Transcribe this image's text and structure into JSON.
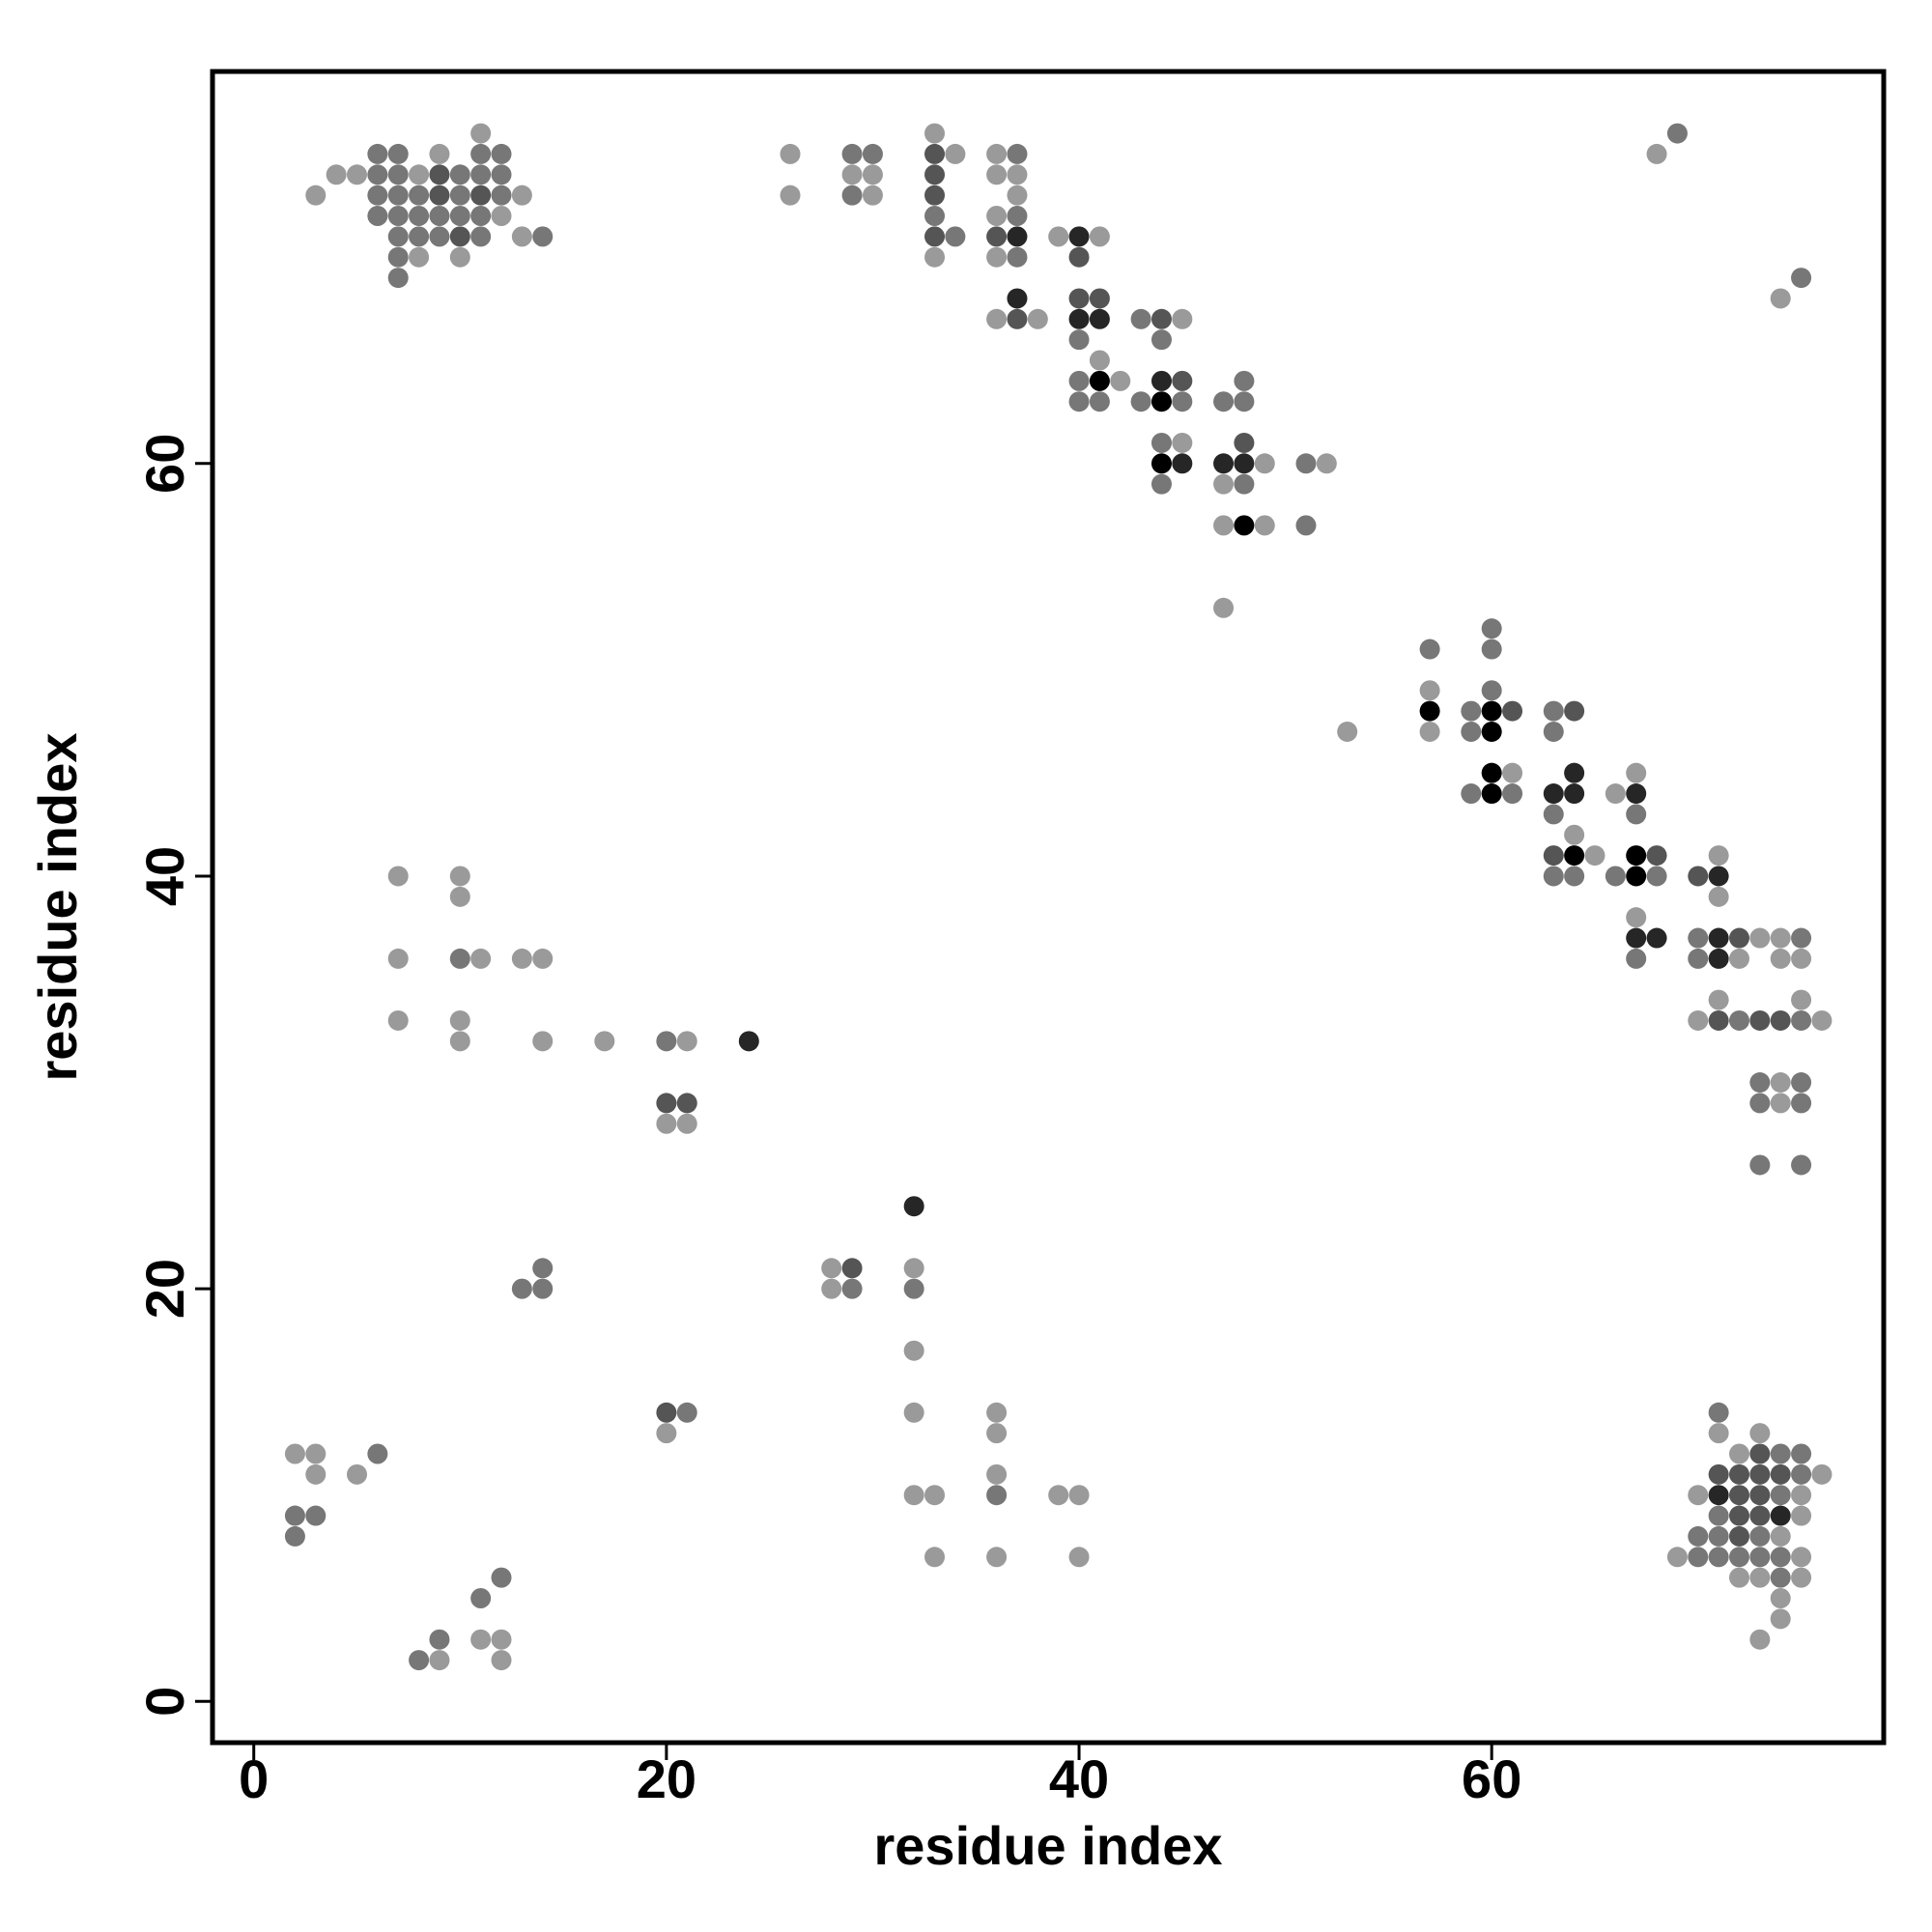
{
  "chart_data": {
    "type": "scatter",
    "x_label": "residue index",
    "y_label": "residue index",
    "xlim": [
      -2,
      79
    ],
    "ylim": [
      -2,
      79
    ],
    "xticks": [
      0,
      20,
      40,
      60
    ],
    "yticks": [
      0,
      20,
      40,
      60
    ],
    "points": [
      [
        11,
        76,
        "#9a9a9a"
      ],
      [
        6,
        75,
        "#777777"
      ],
      [
        7,
        75,
        "#777777"
      ],
      [
        9,
        75,
        "#9a9a9a"
      ],
      [
        11,
        75,
        "#777777"
      ],
      [
        12,
        75,
        "#777777"
      ],
      [
        4,
        74,
        "#9a9a9a"
      ],
      [
        5,
        74,
        "#9a9a9a"
      ],
      [
        6,
        74,
        "#777777"
      ],
      [
        7,
        74,
        "#777777"
      ],
      [
        8,
        74,
        "#9a9a9a"
      ],
      [
        9,
        74,
        "#555555"
      ],
      [
        10,
        74,
        "#777777"
      ],
      [
        11,
        74,
        "#777777"
      ],
      [
        12,
        74,
        "#777777"
      ],
      [
        3,
        73,
        "#9a9a9a"
      ],
      [
        6,
        73,
        "#777777"
      ],
      [
        7,
        73,
        "#777777"
      ],
      [
        8,
        73,
        "#777777"
      ],
      [
        9,
        73,
        "#555555"
      ],
      [
        10,
        73,
        "#777777"
      ],
      [
        11,
        73,
        "#555555"
      ],
      [
        12,
        73,
        "#777777"
      ],
      [
        13,
        73,
        "#9a9a9a"
      ],
      [
        6,
        72,
        "#777777"
      ],
      [
        7,
        72,
        "#777777"
      ],
      [
        8,
        72,
        "#777777"
      ],
      [
        9,
        72,
        "#777777"
      ],
      [
        10,
        72,
        "#777777"
      ],
      [
        11,
        72,
        "#777777"
      ],
      [
        12,
        72,
        "#9a9a9a"
      ],
      [
        7,
        71,
        "#777777"
      ],
      [
        8,
        71,
        "#777777"
      ],
      [
        9,
        71,
        "#777777"
      ],
      [
        10,
        71,
        "#555555"
      ],
      [
        11,
        71,
        "#777777"
      ],
      [
        13,
        71,
        "#9a9a9a"
      ],
      [
        14,
        71,
        "#777777"
      ],
      [
        7,
        70,
        "#777777"
      ],
      [
        8,
        70,
        "#9a9a9a"
      ],
      [
        10,
        70,
        "#9a9a9a"
      ],
      [
        7,
        69,
        "#777777"
      ],
      [
        26,
        75,
        "#9a9a9a"
      ],
      [
        26,
        73,
        "#9a9a9a"
      ],
      [
        29,
        75,
        "#777777"
      ],
      [
        29,
        74,
        "#9a9a9a"
      ],
      [
        29,
        73,
        "#777777"
      ],
      [
        30,
        75,
        "#777777"
      ],
      [
        30,
        74,
        "#9a9a9a"
      ],
      [
        30,
        73,
        "#9a9a9a"
      ],
      [
        33,
        76,
        "#9a9a9a"
      ],
      [
        33,
        75,
        "#555555"
      ],
      [
        33,
        74,
        "#555555"
      ],
      [
        33,
        73,
        "#555555"
      ],
      [
        33,
        72,
        "#777777"
      ],
      [
        33,
        71,
        "#555555"
      ],
      [
        33,
        70,
        "#9a9a9a"
      ],
      [
        34,
        75,
        "#9a9a9a"
      ],
      [
        34,
        71,
        "#777777"
      ],
      [
        36,
        75,
        "#9a9a9a"
      ],
      [
        36,
        74,
        "#9a9a9a"
      ],
      [
        36,
        72,
        "#9a9a9a"
      ],
      [
        36,
        71,
        "#555555"
      ],
      [
        36,
        70,
        "#9a9a9a"
      ],
      [
        36,
        67,
        "#9a9a9a"
      ],
      [
        37,
        75,
        "#777777"
      ],
      [
        37,
        74,
        "#9a9a9a"
      ],
      [
        37,
        73,
        "#9a9a9a"
      ],
      [
        37,
        72,
        "#777777"
      ],
      [
        37,
        71,
        "#262626"
      ],
      [
        37,
        70,
        "#777777"
      ],
      [
        37,
        68,
        "#262626"
      ],
      [
        37,
        67,
        "#555555"
      ],
      [
        38,
        67,
        "#9a9a9a"
      ],
      [
        39,
        71,
        "#9a9a9a"
      ],
      [
        40,
        71,
        "#262626"
      ],
      [
        40,
        70,
        "#555555"
      ],
      [
        40,
        68,
        "#555555"
      ],
      [
        40,
        67,
        "#262626"
      ],
      [
        40,
        66,
        "#777777"
      ],
      [
        40,
        64,
        "#777777"
      ],
      [
        40,
        63,
        "#777777"
      ],
      [
        41,
        71,
        "#9a9a9a"
      ],
      [
        41,
        68,
        "#555555"
      ],
      [
        41,
        67,
        "#262626"
      ],
      [
        41,
        65,
        "#9a9a9a"
      ],
      [
        41,
        64,
        "#000000"
      ],
      [
        41,
        63,
        "#777777"
      ],
      [
        42,
        64,
        "#9a9a9a"
      ],
      [
        43,
        67,
        "#777777"
      ],
      [
        43,
        63,
        "#777777"
      ],
      [
        44,
        67,
        "#555555"
      ],
      [
        44,
        66,
        "#777777"
      ],
      [
        44,
        64,
        "#262626"
      ],
      [
        44,
        63,
        "#000000"
      ],
      [
        44,
        61,
        "#777777"
      ],
      [
        44,
        60,
        "#000000"
      ],
      [
        44,
        59,
        "#777777"
      ],
      [
        45,
        67,
        "#9a9a9a"
      ],
      [
        45,
        64,
        "#555555"
      ],
      [
        45,
        63,
        "#777777"
      ],
      [
        45,
        61,
        "#9a9a9a"
      ],
      [
        45,
        60,
        "#262626"
      ],
      [
        47,
        63,
        "#777777"
      ],
      [
        47,
        60,
        "#262626"
      ],
      [
        47,
        59,
        "#9a9a9a"
      ],
      [
        47,
        57,
        "#9a9a9a"
      ],
      [
        47,
        53,
        "#9a9a9a"
      ],
      [
        48,
        64,
        "#777777"
      ],
      [
        48,
        63,
        "#777777"
      ],
      [
        48,
        61,
        "#555555"
      ],
      [
        48,
        60,
        "#262626"
      ],
      [
        48,
        59,
        "#777777"
      ],
      [
        48,
        57,
        "#000000"
      ],
      [
        49,
        60,
        "#9a9a9a"
      ],
      [
        49,
        57,
        "#9a9a9a"
      ],
      [
        51,
        60,
        "#777777"
      ],
      [
        51,
        57,
        "#777777"
      ],
      [
        52,
        60,
        "#9a9a9a"
      ],
      [
        53,
        47,
        "#9a9a9a"
      ],
      [
        57,
        51,
        "#777777"
      ],
      [
        57,
        49,
        "#9a9a9a"
      ],
      [
        57,
        48,
        "#000000"
      ],
      [
        57,
        47,
        "#9a9a9a"
      ],
      [
        59,
        48,
        "#777777"
      ],
      [
        59,
        47,
        "#777777"
      ],
      [
        59,
        44,
        "#777777"
      ],
      [
        60,
        52,
        "#777777"
      ],
      [
        60,
        51,
        "#777777"
      ],
      [
        60,
        49,
        "#777777"
      ],
      [
        60,
        48,
        "#000000"
      ],
      [
        60,
        47,
        "#000000"
      ],
      [
        60,
        45,
        "#000000"
      ],
      [
        60,
        44,
        "#000000"
      ],
      [
        61,
        48,
        "#555555"
      ],
      [
        61,
        45,
        "#9a9a9a"
      ],
      [
        61,
        44,
        "#777777"
      ],
      [
        63,
        48,
        "#777777"
      ],
      [
        63,
        47,
        "#777777"
      ],
      [
        63,
        44,
        "#262626"
      ],
      [
        63,
        43,
        "#777777"
      ],
      [
        63,
        41,
        "#555555"
      ],
      [
        63,
        40,
        "#777777"
      ],
      [
        64,
        48,
        "#555555"
      ],
      [
        64,
        45,
        "#262626"
      ],
      [
        64,
        44,
        "#262626"
      ],
      [
        64,
        42,
        "#9a9a9a"
      ],
      [
        64,
        41,
        "#000000"
      ],
      [
        64,
        40,
        "#777777"
      ],
      [
        65,
        41,
        "#9a9a9a"
      ],
      [
        66,
        44,
        "#9a9a9a"
      ],
      [
        66,
        40,
        "#777777"
      ],
      [
        67,
        45,
        "#9a9a9a"
      ],
      [
        67,
        44,
        "#262626"
      ],
      [
        67,
        43,
        "#777777"
      ],
      [
        67,
        41,
        "#000000"
      ],
      [
        67,
        40,
        "#000000"
      ],
      [
        67,
        38,
        "#9a9a9a"
      ],
      [
        67,
        37,
        "#262626"
      ],
      [
        67,
        36,
        "#777777"
      ],
      [
        68,
        41,
        "#555555"
      ],
      [
        68,
        40,
        "#777777"
      ],
      [
        68,
        37,
        "#262626"
      ],
      [
        70,
        40,
        "#555555"
      ],
      [
        70,
        37,
        "#777777"
      ],
      [
        70,
        36,
        "#777777"
      ],
      [
        70,
        33,
        "#9a9a9a"
      ],
      [
        71,
        41,
        "#9a9a9a"
      ],
      [
        71,
        40,
        "#262626"
      ],
      [
        71,
        39,
        "#9a9a9a"
      ],
      [
        71,
        37,
        "#262626"
      ],
      [
        71,
        36,
        "#262626"
      ],
      [
        71,
        34,
        "#9a9a9a"
      ],
      [
        71,
        33,
        "#555555"
      ],
      [
        72,
        37,
        "#555555"
      ],
      [
        72,
        36,
        "#9a9a9a"
      ],
      [
        72,
        33,
        "#777777"
      ],
      [
        73,
        37,
        "#9a9a9a"
      ],
      [
        73,
        33,
        "#555555"
      ],
      [
        73,
        30,
        "#777777"
      ],
      [
        73,
        29,
        "#777777"
      ],
      [
        73,
        26,
        "#777777"
      ],
      [
        74,
        37,
        "#9a9a9a"
      ],
      [
        74,
        36,
        "#9a9a9a"
      ],
      [
        74,
        33,
        "#555555"
      ],
      [
        74,
        30,
        "#9a9a9a"
      ],
      [
        74,
        29,
        "#9a9a9a"
      ],
      [
        75,
        37,
        "#777777"
      ],
      [
        75,
        36,
        "#9a9a9a"
      ],
      [
        75,
        34,
        "#9a9a9a"
      ],
      [
        75,
        33,
        "#777777"
      ],
      [
        75,
        30,
        "#777777"
      ],
      [
        75,
        29,
        "#777777"
      ],
      [
        75,
        26,
        "#777777"
      ],
      [
        76,
        33,
        "#9a9a9a"
      ],
      [
        68,
        75,
        "#9a9a9a"
      ],
      [
        69,
        76,
        "#777777"
      ],
      [
        74,
        68,
        "#9a9a9a"
      ],
      [
        75,
        69,
        "#777777"
      ],
      [
        7,
        40,
        "#9a9a9a"
      ],
      [
        7,
        36,
        "#9a9a9a"
      ],
      [
        7,
        33,
        "#9a9a9a"
      ],
      [
        10,
        40,
        "#9a9a9a"
      ],
      [
        10,
        39,
        "#9a9a9a"
      ],
      [
        10,
        36,
        "#777777"
      ],
      [
        10,
        33,
        "#9a9a9a"
      ],
      [
        10,
        32,
        "#9a9a9a"
      ],
      [
        11,
        36,
        "#9a9a9a"
      ],
      [
        13,
        36,
        "#9a9a9a"
      ],
      [
        13,
        20,
        "#777777"
      ],
      [
        14,
        36,
        "#9a9a9a"
      ],
      [
        14,
        32,
        "#9a9a9a"
      ],
      [
        14,
        21,
        "#777777"
      ],
      [
        14,
        20,
        "#777777"
      ],
      [
        17,
        32,
        "#9a9a9a"
      ],
      [
        20,
        32,
        "#777777"
      ],
      [
        20,
        29,
        "#555555"
      ],
      [
        20,
        28,
        "#9a9a9a"
      ],
      [
        20,
        14,
        "#555555"
      ],
      [
        20,
        13,
        "#9a9a9a"
      ],
      [
        21,
        32,
        "#9a9a9a"
      ],
      [
        21,
        29,
        "#555555"
      ],
      [
        21,
        28,
        "#9a9a9a"
      ],
      [
        21,
        14,
        "#777777"
      ],
      [
        24,
        32,
        "#262626"
      ],
      [
        28,
        21,
        "#9a9a9a"
      ],
      [
        28,
        20,
        "#9a9a9a"
      ],
      [
        29,
        21,
        "#555555"
      ],
      [
        29,
        20,
        "#777777"
      ],
      [
        32,
        24,
        "#262626"
      ],
      [
        32,
        21,
        "#9a9a9a"
      ],
      [
        32,
        20,
        "#777777"
      ],
      [
        32,
        17,
        "#9a9a9a"
      ],
      [
        32,
        14,
        "#9a9a9a"
      ],
      [
        32,
        10,
        "#9a9a9a"
      ],
      [
        33,
        10,
        "#9a9a9a"
      ],
      [
        33,
        7,
        "#9a9a9a"
      ],
      [
        36,
        14,
        "#9a9a9a"
      ],
      [
        36,
        13,
        "#9a9a9a"
      ],
      [
        36,
        11,
        "#9a9a9a"
      ],
      [
        36,
        10,
        "#777777"
      ],
      [
        36,
        7,
        "#9a9a9a"
      ],
      [
        39,
        10,
        "#9a9a9a"
      ],
      [
        40,
        10,
        "#9a9a9a"
      ],
      [
        40,
        7,
        "#9a9a9a"
      ],
      [
        2,
        12,
        "#9a9a9a"
      ],
      [
        2,
        9,
        "#777777"
      ],
      [
        2,
        8,
        "#777777"
      ],
      [
        3,
        12,
        "#9a9a9a"
      ],
      [
        3,
        11,
        "#9a9a9a"
      ],
      [
        3,
        9,
        "#777777"
      ],
      [
        5,
        11,
        "#9a9a9a"
      ],
      [
        6,
        12,
        "#777777"
      ],
      [
        8,
        2,
        "#777777"
      ],
      [
        9,
        3,
        "#777777"
      ],
      [
        9,
        2,
        "#9a9a9a"
      ],
      [
        11,
        5,
        "#777777"
      ],
      [
        11,
        3,
        "#9a9a9a"
      ],
      [
        12,
        6,
        "#777777"
      ],
      [
        12,
        3,
        "#9a9a9a"
      ],
      [
        12,
        2,
        "#9a9a9a"
      ],
      [
        71,
        14,
        "#777777"
      ],
      [
        71,
        13,
        "#9a9a9a"
      ],
      [
        73,
        13,
        "#9a9a9a"
      ],
      [
        72,
        12,
        "#9a9a9a"
      ],
      [
        73,
        12,
        "#555555"
      ],
      [
        74,
        12,
        "#777777"
      ],
      [
        75,
        12,
        "#777777"
      ],
      [
        71,
        11,
        "#555555"
      ],
      [
        72,
        11,
        "#555555"
      ],
      [
        73,
        11,
        "#555555"
      ],
      [
        74,
        11,
        "#555555"
      ],
      [
        75,
        11,
        "#777777"
      ],
      [
        76,
        11,
        "#9a9a9a"
      ],
      [
        70,
        10,
        "#9a9a9a"
      ],
      [
        71,
        10,
        "#262626"
      ],
      [
        72,
        10,
        "#555555"
      ],
      [
        73,
        10,
        "#555555"
      ],
      [
        74,
        10,
        "#777777"
      ],
      [
        75,
        10,
        "#9a9a9a"
      ],
      [
        71,
        9,
        "#777777"
      ],
      [
        72,
        9,
        "#555555"
      ],
      [
        73,
        9,
        "#555555"
      ],
      [
        74,
        9,
        "#262626"
      ],
      [
        75,
        9,
        "#9a9a9a"
      ],
      [
        70,
        8,
        "#777777"
      ],
      [
        71,
        8,
        "#777777"
      ],
      [
        72,
        8,
        "#555555"
      ],
      [
        73,
        8,
        "#777777"
      ],
      [
        74,
        8,
        "#9a9a9a"
      ],
      [
        69,
        7,
        "#9a9a9a"
      ],
      [
        70,
        7,
        "#777777"
      ],
      [
        71,
        7,
        "#777777"
      ],
      [
        72,
        7,
        "#777777"
      ],
      [
        73,
        7,
        "#777777"
      ],
      [
        74,
        7,
        "#777777"
      ],
      [
        75,
        7,
        "#9a9a9a"
      ],
      [
        72,
        6,
        "#9a9a9a"
      ],
      [
        73,
        6,
        "#9a9a9a"
      ],
      [
        74,
        6,
        "#777777"
      ],
      [
        75,
        6,
        "#9a9a9a"
      ],
      [
        74,
        5,
        "#9a9a9a"
      ],
      [
        74,
        4,
        "#9a9a9a"
      ],
      [
        73,
        3,
        "#9a9a9a"
      ]
    ]
  }
}
